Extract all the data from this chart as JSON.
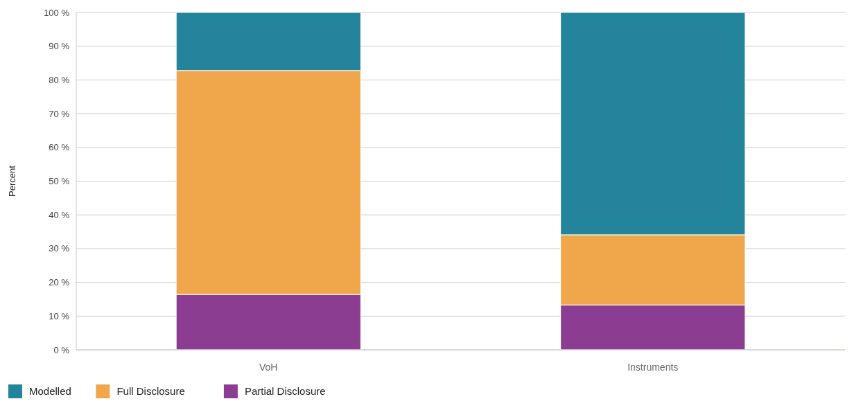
{
  "chart_data": {
    "type": "bar",
    "stacked": true,
    "ylabel": "Percent",
    "categories": [
      "VoH",
      "Instruments"
    ],
    "series": [
      {
        "name": "Partial Disclosure",
        "color": "#8b3e91",
        "values": [
          16.4,
          13.3
        ]
      },
      {
        "name": "Full Disclosure",
        "color": "#f0a64a",
        "values": [
          66.4,
          20.8
        ]
      },
      {
        "name": "Modelled",
        "color": "#23849b",
        "values": [
          17.2,
          65.9
        ]
      }
    ],
    "ylim": [
      0,
      100
    ],
    "yticks": [
      {
        "value": 0,
        "label": "0 %"
      },
      {
        "value": 10,
        "label": "10 %"
      },
      {
        "value": 20,
        "label": "20 %"
      },
      {
        "value": 30,
        "label": "30 %"
      },
      {
        "value": 40,
        "label": "40 %"
      },
      {
        "value": 50,
        "label": "50 %"
      },
      {
        "value": 60,
        "label": "60 %"
      },
      {
        "value": 70,
        "label": "70 %"
      },
      {
        "value": 80,
        "label": "80 %"
      },
      {
        "value": 90,
        "label": "90 %"
      },
      {
        "value": 100,
        "label": "100 %"
      }
    ],
    "grid": "y",
    "legend": "bottom left"
  }
}
